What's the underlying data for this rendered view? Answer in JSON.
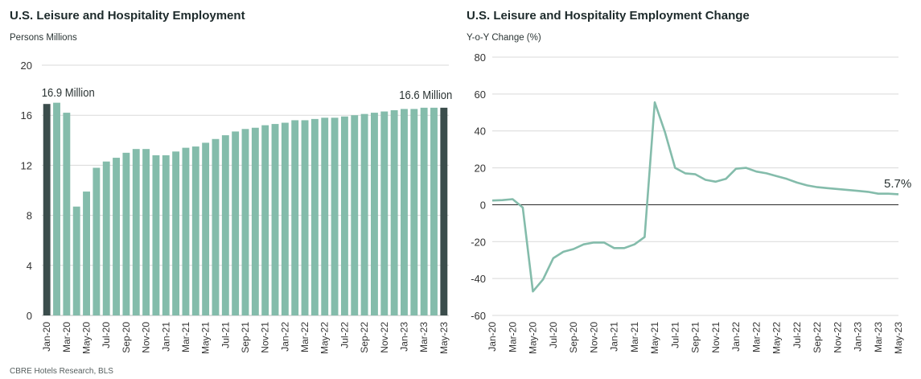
{
  "left_chart": {
    "title": "U.S. Leisure and Hospitality Employment",
    "subtitle": "Persons Millions",
    "annotation_start": "16.9 Million",
    "annotation_end": "16.6 Million"
  },
  "right_chart": {
    "title": "U.S. Leisure and Hospitality Employment Change",
    "subtitle": "Y-o-Y Change (%)",
    "annotation_end": "5.7%"
  },
  "source": "CBRE Hotels Research, BLS",
  "colors": {
    "bar": "#84bcab",
    "bar_highlight": "#3b4d4c",
    "line": "#84bcab",
    "zero_line": "#333333",
    "grid": "#d9d9d9"
  },
  "chart_data": [
    {
      "type": "bar",
      "title": "U.S. Leisure and Hospitality Employment",
      "ylabel": "Persons Millions",
      "ylim": [
        0,
        20
      ],
      "yticks": [
        0,
        4,
        8,
        12,
        16,
        20
      ],
      "grid": true,
      "categories": [
        "Jan-20",
        "Feb-20",
        "Mar-20",
        "Apr-20",
        "May-20",
        "Jun-20",
        "Jul-20",
        "Aug-20",
        "Sep-20",
        "Oct-20",
        "Nov-20",
        "Dec-20",
        "Jan-21",
        "Feb-21",
        "Mar-21",
        "Apr-21",
        "May-21",
        "Jun-21",
        "Jul-21",
        "Aug-21",
        "Sep-21",
        "Oct-21",
        "Nov-21",
        "Dec-21",
        "Jan-22",
        "Feb-22",
        "Mar-22",
        "Apr-22",
        "May-22",
        "Jun-22",
        "Jul-22",
        "Aug-22",
        "Sep-22",
        "Oct-22",
        "Nov-22",
        "Dec-22",
        "Jan-23",
        "Feb-23",
        "Mar-23",
        "Apr-23",
        "May-23"
      ],
      "tick_labels": [
        "Jan-20",
        "Mar-20",
        "May-20",
        "Jul-20",
        "Sep-20",
        "Nov-20",
        "Jan-21",
        "Mar-21",
        "May-21",
        "Jul-21",
        "Sep-21",
        "Nov-21",
        "Jan-22",
        "Mar-22",
        "May-22",
        "Jul-22",
        "Sep-22",
        "Nov-22",
        "Jan-23",
        "Mar-23",
        "May-23"
      ],
      "values": [
        16.9,
        17.0,
        16.2,
        8.7,
        9.9,
        11.8,
        12.3,
        12.6,
        13.0,
        13.3,
        13.3,
        12.8,
        12.8,
        13.1,
        13.4,
        13.5,
        13.8,
        14.1,
        14.4,
        14.7,
        14.9,
        15.0,
        15.2,
        15.3,
        15.4,
        15.6,
        15.6,
        15.7,
        15.8,
        15.8,
        15.9,
        16.0,
        16.1,
        16.2,
        16.3,
        16.4,
        16.5,
        16.5,
        16.6,
        16.6,
        16.6
      ],
      "highlighted_categories": [
        "Jan-20",
        "May-23"
      ]
    },
    {
      "type": "line",
      "title": "U.S. Leisure and Hospitality Employment Change",
      "ylabel": "Y-o-Y Change (%)",
      "ylim": [
        -60,
        80
      ],
      "yticks": [
        -60,
        -40,
        -20,
        0,
        20,
        40,
        60,
        80
      ],
      "grid": true,
      "x": [
        "Jan-20",
        "Feb-20",
        "Mar-20",
        "Apr-20",
        "May-20",
        "Jun-20",
        "Jul-20",
        "Aug-20",
        "Sep-20",
        "Oct-20",
        "Nov-20",
        "Dec-20",
        "Jan-21",
        "Feb-21",
        "Mar-21",
        "Apr-21",
        "May-21",
        "Jun-21",
        "Jul-21",
        "Aug-21",
        "Sep-21",
        "Oct-21",
        "Nov-21",
        "Dec-21",
        "Jan-22",
        "Feb-22",
        "Mar-22",
        "Apr-22",
        "May-22",
        "Jun-22",
        "Jul-22",
        "Aug-22",
        "Sep-22",
        "Oct-22",
        "Nov-22",
        "Dec-22",
        "Jan-23",
        "Feb-23",
        "Mar-23",
        "Apr-23",
        "May-23"
      ],
      "tick_labels": [
        "Jan-20",
        "Mar-20",
        "May-20",
        "Jul-20",
        "Sep-20",
        "Nov-20",
        "Jan-21",
        "Mar-21",
        "May-21",
        "Jul-21",
        "Sep-21",
        "Nov-21",
        "Jan-22",
        "Mar-22",
        "May-22",
        "Jul-22",
        "Sep-22",
        "Nov-22",
        "Jan-23",
        "Mar-23",
        "May-23"
      ],
      "values": [
        2.3,
        2.5,
        3.0,
        -1.5,
        -47.0,
        -40.5,
        -29.0,
        -25.5,
        -24.0,
        -21.5,
        -20.5,
        -20.5,
        -23.5,
        -23.5,
        -21.5,
        -17.5,
        55.5,
        39.5,
        20.0,
        17.0,
        16.5,
        13.5,
        12.5,
        14.0,
        19.5,
        20.0,
        18.0,
        17.0,
        15.5,
        14.0,
        12.0,
        10.5,
        9.5,
        9.0,
        8.5,
        8.0,
        7.5,
        7.0,
        6.0,
        6.0,
        5.7
      ],
      "last_label": "5.7%"
    }
  ]
}
